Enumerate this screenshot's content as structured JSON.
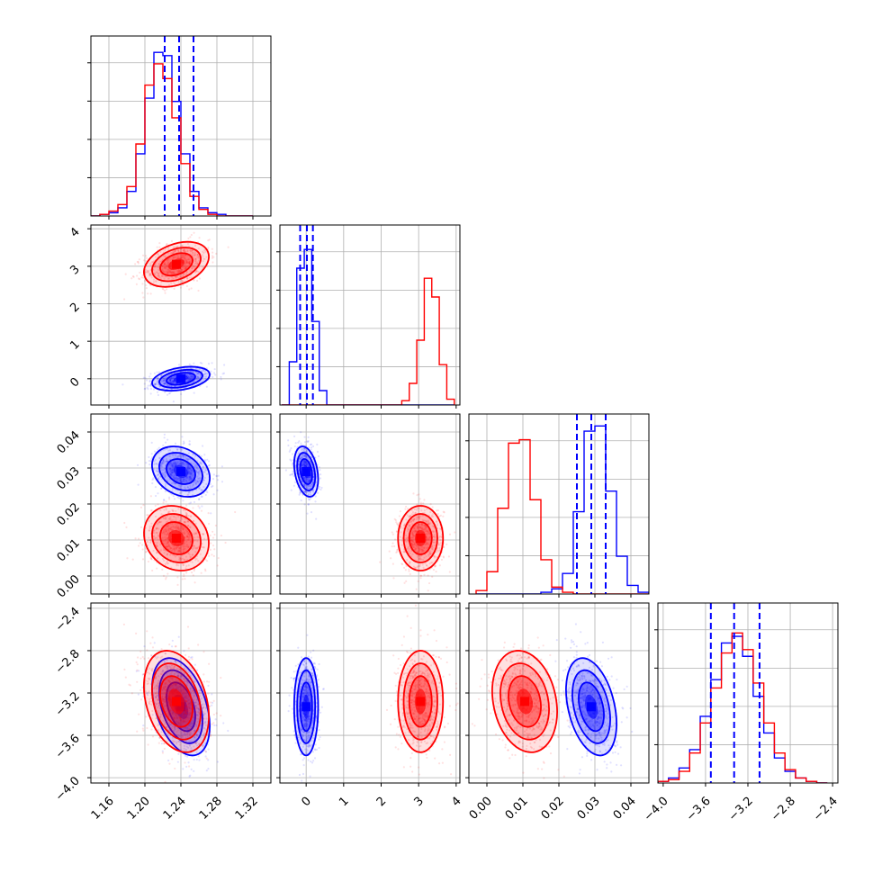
{
  "chart_data": {
    "type": "corner",
    "parameters": 4,
    "grid": true,
    "series": [
      {
        "name": "",
        "color": "#0000ff",
        "means": [
          1.24,
          0.0,
          0.029,
          -3.33
        ],
        "sigmas": [
          0.016,
          0.16,
          0.0035,
          0.23
        ]
      },
      {
        "name": "",
        "color": "#ff0000",
        "means": [
          1.235,
          3.05,
          0.0105,
          -3.28
        ],
        "sigmas": [
          0.018,
          0.3,
          0.0045,
          0.24
        ]
      }
    ],
    "quantile_lines": [
      [
        1.222,
        1.238,
        1.254
      ],
      [
        -0.16,
        0.02,
        0.18
      ],
      [
        0.025,
        0.029,
        0.033
      ],
      [
        -3.55,
        -3.33,
        -3.09
      ]
    ],
    "axes": [
      {
        "range": [
          1.14,
          1.34
        ],
        "ticks": [
          1.16,
          1.2,
          1.24,
          1.28,
          1.32
        ],
        "tick_labels": [
          "1.16",
          "1.20",
          "1.24",
          "1.28",
          "1.32"
        ]
      },
      {
        "range": [
          -0.7,
          4.1
        ],
        "ticks": [
          0,
          1,
          2,
          3,
          4
        ],
        "tick_labels": [
          "0",
          "1",
          "2",
          "3",
          "4"
        ]
      },
      {
        "range": [
          -0.005,
          0.045
        ],
        "ticks": [
          0.0,
          0.01,
          0.02,
          0.03,
          0.04
        ],
        "tick_labels": [
          "0.00",
          "0.01",
          "0.02",
          "0.03",
          "0.04"
        ]
      },
      {
        "range": [
          -4.05,
          -2.35
        ],
        "ticks": [
          -4.0,
          -3.6,
          -3.2,
          -2.8,
          -2.4
        ],
        "tick_labels": [
          "−4.0",
          "−3.6",
          "−3.2",
          "−2.8",
          "−2.4"
        ]
      }
    ],
    "correlations": {
      "0_1": {
        "blue": 0.35,
        "red": 0.35
      },
      "0_2": {
        "blue": -0.25,
        "red": -0.15
      },
      "0_3": {
        "blue": -0.4,
        "red": -0.3
      },
      "1_2": {
        "blue": -0.3,
        "red": 0.0
      },
      "1_3": {
        "blue": 0.0,
        "red": 0.0
      },
      "2_3": {
        "blue": -0.35,
        "red": -0.2
      }
    },
    "histograms": [
      {
        "edges": [
          1.14,
          1.15,
          1.16,
          1.17,
          1.18,
          1.19,
          1.2,
          1.21,
          1.22,
          1.23,
          1.24,
          1.25,
          1.26,
          1.27,
          1.28,
          1.29,
          1.3,
          1.31,
          1.32
        ],
        "blue": [
          0,
          1,
          2,
          5,
          15,
          38,
          72,
          100,
          98,
          70,
          38,
          15,
          5,
          2,
          1,
          0,
          0,
          0
        ],
        "red": [
          0,
          1,
          3,
          7,
          18,
          44,
          80,
          93,
          84,
          60,
          32,
          12,
          4,
          1,
          0,
          0,
          0,
          0
        ],
        "ymax": 110
      },
      {
        "edges": [
          -0.65,
          -0.45,
          -0.25,
          -0.05,
          0.15,
          0.35,
          0.55,
          0.75,
          0.95,
          1.15,
          1.35,
          1.55,
          1.75,
          1.95,
          2.15,
          2.35,
          2.55,
          2.75,
          2.95,
          3.15,
          3.35,
          3.55,
          3.75,
          3.95
        ],
        "blue": [
          0,
          30,
          95,
          108,
          58,
          10,
          0,
          0,
          0,
          0,
          0,
          0,
          0,
          0,
          0,
          0,
          0,
          0,
          0,
          0,
          0,
          0,
          0
        ],
        "red": [
          0,
          0,
          0,
          0,
          0,
          0,
          0,
          0,
          0,
          0,
          0,
          0,
          0,
          0,
          0,
          0,
          3,
          15,
          45,
          88,
          75,
          28,
          4
        ],
        "ymax": 125
      },
      {
        "edges": [
          -0.003,
          0.0,
          0.003,
          0.006,
          0.009,
          0.012,
          0.015,
          0.018,
          0.021,
          0.024,
          0.027,
          0.03,
          0.033,
          0.036,
          0.039,
          0.042,
          0.045
        ],
        "blue": [
          0,
          0,
          0,
          0,
          0,
          0,
          1,
          3,
          12,
          48,
          95,
          98,
          60,
          22,
          5,
          1
        ],
        "red": [
          2,
          13,
          50,
          88,
          90,
          55,
          20,
          4,
          1,
          0,
          0,
          0,
          0,
          0,
          0,
          0
        ],
        "ymax": 105
      },
      {
        "edges": [
          -4.05,
          -3.95,
          -3.85,
          -3.75,
          -3.65,
          -3.55,
          -3.45,
          -3.35,
          -3.25,
          -3.15,
          -3.05,
          -2.95,
          -2.85,
          -2.75,
          -2.65,
          -2.55,
          -2.45
        ],
        "blue": [
          1,
          3,
          9,
          20,
          40,
          62,
          84,
          88,
          76,
          52,
          30,
          15,
          7,
          3,
          1,
          0
        ],
        "red": [
          1,
          2,
          7,
          18,
          36,
          57,
          78,
          90,
          80,
          60,
          36,
          18,
          8,
          3,
          1,
          0
        ],
        "ymax": 108
      }
    ]
  }
}
